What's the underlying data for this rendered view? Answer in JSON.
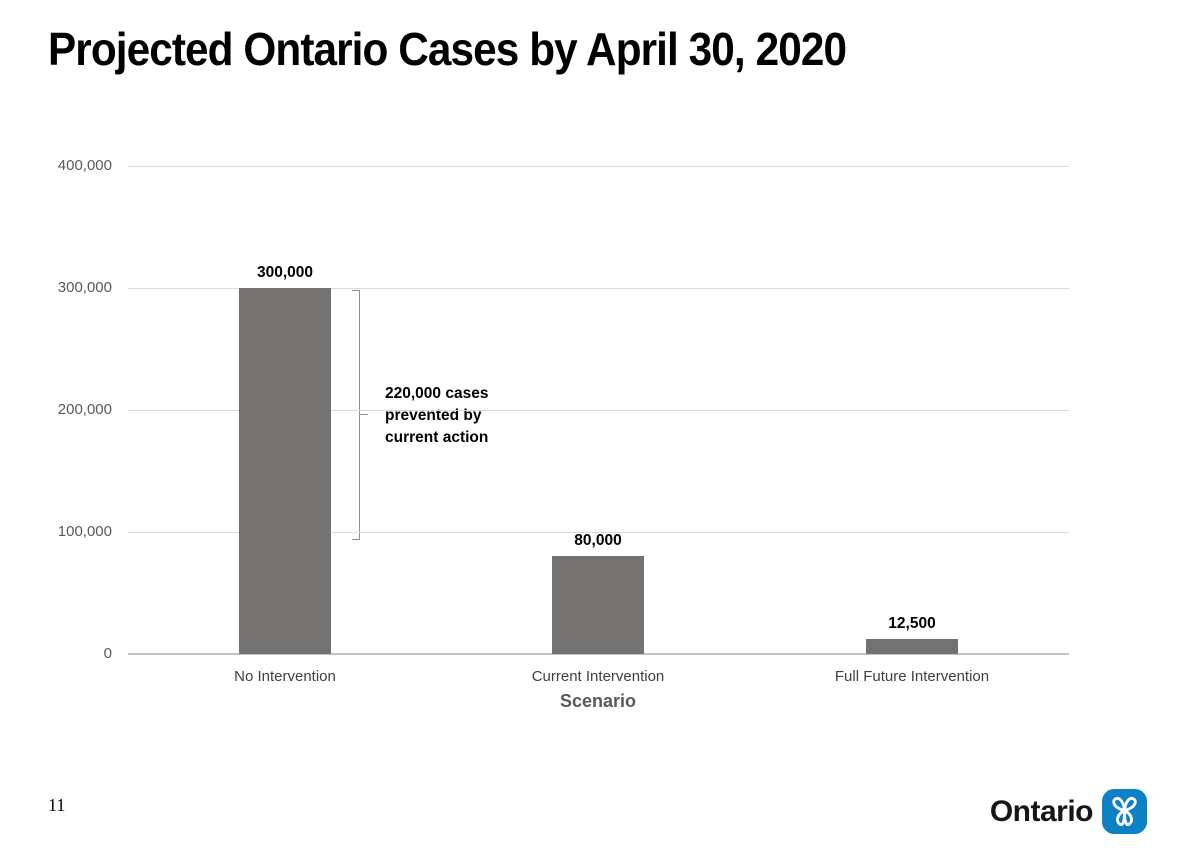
{
  "slide": {
    "title": "Projected Ontario Cases by April 30, 2020",
    "page_number": "11",
    "brand": {
      "wordmark": "Ontario",
      "blue": "#0e80c4"
    }
  },
  "chart_data": {
    "type": "bar",
    "title": "",
    "categories": [
      "No Intervention",
      "Current Intervention",
      "Full Future Intervention"
    ],
    "values": [
      300000,
      80000,
      12500
    ],
    "value_labels": [
      "300,000",
      "80,000",
      "12,500"
    ],
    "xlabel": "Scenario",
    "ylabel": "",
    "ylim": [
      0,
      400000
    ],
    "yticks": [
      0,
      100000,
      200000,
      300000,
      400000
    ],
    "ytick_labels": [
      "0",
      "100,000",
      "200,000",
      "300,000",
      "400,000"
    ],
    "grid": true,
    "legend": "none",
    "bar_color": "#747171",
    "annotation": {
      "text": "220,000 cases\nprevented by\ncurrent action",
      "bracket_from_value": 300000,
      "bracket_to_value": 95000
    }
  }
}
